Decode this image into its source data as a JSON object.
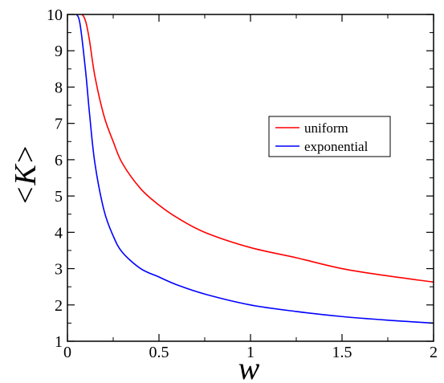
{
  "chart_data": {
    "type": "line",
    "xlabel": "w",
    "ylabel": "<K>",
    "xlim": [
      0,
      2
    ],
    "ylim": [
      1,
      10
    ],
    "xticks": [
      "0",
      "0.5",
      "1",
      "1.5",
      "2"
    ],
    "yticks": [
      "1",
      "2",
      "3",
      "4",
      "5",
      "6",
      "7",
      "8",
      "9",
      "10"
    ],
    "grid": false,
    "legend_position": "center-right",
    "series": [
      {
        "name": "uniform",
        "color": "#ff0000",
        "x": [
          0.05,
          0.08,
          0.1,
          0.12,
          0.15,
          0.2,
          0.25,
          0.3,
          0.4,
          0.5,
          0.6,
          0.75,
          1.0,
          1.25,
          1.5,
          1.75,
          2.0
        ],
        "y": [
          10.0,
          10.0,
          9.8,
          9.3,
          8.3,
          7.2,
          6.5,
          5.9,
          5.2,
          4.75,
          4.4,
          4.0,
          3.58,
          3.3,
          3.0,
          2.8,
          2.63
        ]
      },
      {
        "name": "exponential",
        "color": "#0000ff",
        "x": [
          0.03,
          0.05,
          0.07,
          0.1,
          0.12,
          0.15,
          0.2,
          0.25,
          0.3,
          0.4,
          0.5,
          0.6,
          0.75,
          1.0,
          1.25,
          1.5,
          1.75,
          2.0
        ],
        "y": [
          10.0,
          10.0,
          9.7,
          8.4,
          7.3,
          5.9,
          4.6,
          3.9,
          3.45,
          3.0,
          2.77,
          2.55,
          2.3,
          2.0,
          1.82,
          1.68,
          1.58,
          1.5
        ]
      }
    ]
  }
}
